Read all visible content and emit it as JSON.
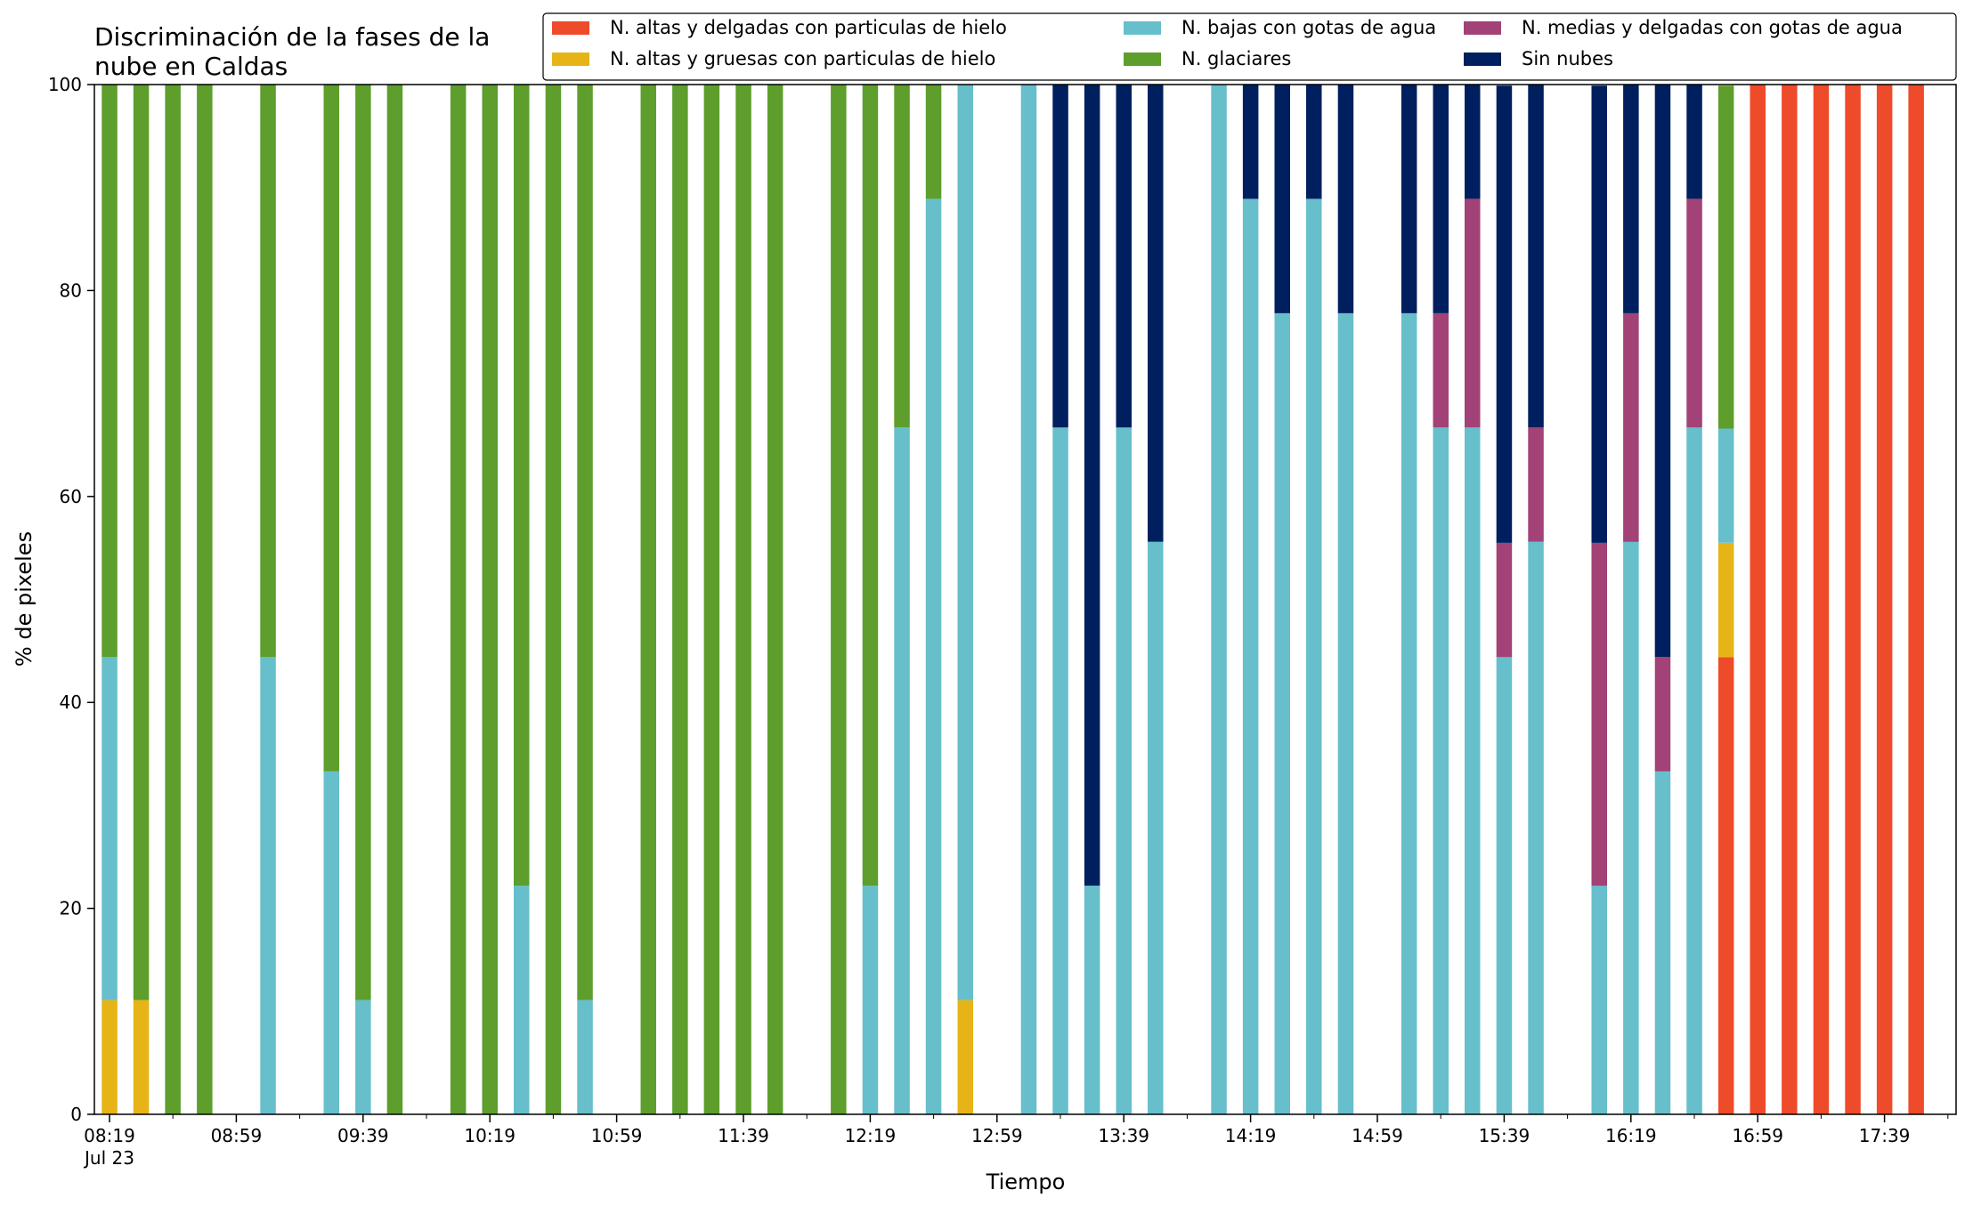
{
  "chart_data": {
    "type": "bar",
    "stacked": true,
    "title_lines": [
      "Discriminación de la fases de la",
      "nube en Caldas"
    ],
    "xlabel": "Tiempo",
    "ylabel": "% de pixeles",
    "ylim": [
      0,
      100
    ],
    "yticks": [
      0,
      20,
      40,
      60,
      80,
      100
    ],
    "xaxis_start": "08:19",
    "xaxis_end": "17:59",
    "slot_minutes": 10,
    "xticks": [
      {
        "time": "08:19",
        "label": "08:19",
        "sublabel": "Jul 23"
      },
      {
        "time": "08:59",
        "label": "08:59"
      },
      {
        "time": "09:39",
        "label": "09:39"
      },
      {
        "time": "10:19",
        "label": "10:19"
      },
      {
        "time": "10:59",
        "label": "10:59"
      },
      {
        "time": "11:39",
        "label": "11:39"
      },
      {
        "time": "12:19",
        "label": "12:19"
      },
      {
        "time": "12:59",
        "label": "12:59"
      },
      {
        "time": "13:39",
        "label": "13:39"
      },
      {
        "time": "14:19",
        "label": "14:19"
      },
      {
        "time": "14:59",
        "label": "14:59"
      },
      {
        "time": "15:39",
        "label": "15:39"
      },
      {
        "time": "16:19",
        "label": "16:19"
      },
      {
        "time": "16:59",
        "label": "16:59"
      },
      {
        "time": "17:39",
        "label": "17:39"
      }
    ],
    "legend_position": "top-right",
    "series": [
      {
        "name": "N. altas y delgadas con particulas de hielo",
        "color": "#ee4b2b"
      },
      {
        "name": "N. altas y gruesas con particulas de hielo",
        "color": "#e6b417"
      },
      {
        "name": "N. bajas con gotas de agua",
        "color": "#66bfcb"
      },
      {
        "name": "N. glaciares",
        "color": "#5d9e2c"
      },
      {
        "name": "N. medias y delgadas con gotas de agua",
        "color": "#a24276"
      },
      {
        "name": "Sin nubes",
        "color": "#001f5e"
      }
    ],
    "bars": [
      {
        "time": "08:19",
        "values": [
          0,
          11.1,
          33.3,
          55.6,
          0,
          0
        ]
      },
      {
        "time": "08:29",
        "values": [
          0,
          11.1,
          0,
          88.9,
          0,
          0
        ]
      },
      {
        "time": "08:39",
        "values": [
          0,
          0,
          0,
          100,
          0,
          0
        ]
      },
      {
        "time": "08:49",
        "values": [
          0,
          0,
          0,
          100,
          0,
          0
        ]
      },
      {
        "time": "09:09",
        "values": [
          0,
          0,
          44.4,
          55.6,
          0,
          0
        ]
      },
      {
        "time": "09:29",
        "values": [
          0,
          0,
          33.3,
          66.7,
          0,
          0
        ]
      },
      {
        "time": "09:39",
        "values": [
          0,
          0,
          11.1,
          88.9,
          0,
          0
        ]
      },
      {
        "time": "09:49",
        "values": [
          0,
          0,
          0,
          100,
          0,
          0
        ]
      },
      {
        "time": "10:09",
        "values": [
          0,
          0,
          0,
          100,
          0,
          0
        ]
      },
      {
        "time": "10:19",
        "values": [
          0,
          0,
          0,
          100,
          0,
          0
        ]
      },
      {
        "time": "10:29",
        "values": [
          0,
          0,
          22.2,
          77.8,
          0,
          0
        ]
      },
      {
        "time": "10:39",
        "values": [
          0,
          0,
          0,
          100,
          0,
          0
        ]
      },
      {
        "time": "10:49",
        "values": [
          0,
          0,
          11.1,
          88.9,
          0,
          0
        ]
      },
      {
        "time": "11:09",
        "values": [
          0,
          0,
          0,
          100,
          0,
          0
        ]
      },
      {
        "time": "11:19",
        "values": [
          0,
          0,
          0,
          100,
          0,
          0
        ]
      },
      {
        "time": "11:29",
        "values": [
          0,
          0,
          0,
          100,
          0,
          0
        ]
      },
      {
        "time": "11:39",
        "values": [
          0,
          0,
          0,
          100,
          0,
          0
        ]
      },
      {
        "time": "11:49",
        "values": [
          0,
          0,
          0,
          100,
          0,
          0
        ]
      },
      {
        "time": "12:09",
        "values": [
          0,
          0,
          0,
          100,
          0,
          0
        ]
      },
      {
        "time": "12:19",
        "values": [
          0,
          0,
          22.2,
          77.8,
          0,
          0
        ]
      },
      {
        "time": "12:29",
        "values": [
          0,
          0,
          66.7,
          33.3,
          0,
          0
        ]
      },
      {
        "time": "12:39",
        "values": [
          0,
          0,
          88.9,
          11.1,
          0,
          0
        ]
      },
      {
        "time": "12:49",
        "values": [
          0,
          11.1,
          88.9,
          0,
          0,
          0
        ]
      },
      {
        "time": "13:09",
        "values": [
          0,
          0,
          100,
          0,
          0,
          0
        ]
      },
      {
        "time": "13:19",
        "values": [
          0,
          0,
          66.7,
          0,
          0,
          33.3
        ]
      },
      {
        "time": "13:29",
        "values": [
          0,
          0,
          22.2,
          0,
          0,
          77.8
        ]
      },
      {
        "time": "13:39",
        "values": [
          0,
          0,
          66.7,
          0,
          0,
          33.3
        ]
      },
      {
        "time": "13:49",
        "values": [
          0,
          0,
          55.6,
          0,
          0,
          44.4
        ]
      },
      {
        "time": "14:09",
        "values": [
          0,
          0,
          100,
          0,
          0,
          0
        ]
      },
      {
        "time": "14:19",
        "values": [
          0,
          0,
          88.9,
          0,
          0,
          11.1
        ]
      },
      {
        "time": "14:29",
        "values": [
          0,
          0,
          77.8,
          0,
          0,
          22.2
        ]
      },
      {
        "time": "14:39",
        "values": [
          0,
          0,
          88.9,
          0,
          0,
          11.1
        ]
      },
      {
        "time": "14:49",
        "values": [
          0,
          0,
          77.8,
          0,
          0,
          22.2
        ]
      },
      {
        "time": "15:09",
        "values": [
          0,
          0,
          77.8,
          0,
          0,
          22.2
        ]
      },
      {
        "time": "15:19",
        "values": [
          0,
          0,
          66.7,
          0,
          11.1,
          22.2
        ]
      },
      {
        "time": "15:29",
        "values": [
          0,
          0,
          66.7,
          0,
          22.2,
          11.1
        ]
      },
      {
        "time": "15:39",
        "values": [
          0,
          0,
          44.4,
          0,
          11.1,
          44.4
        ]
      },
      {
        "time": "15:49",
        "values": [
          0,
          0,
          55.6,
          0,
          11.1,
          33.3
        ]
      },
      {
        "time": "16:09",
        "values": [
          0,
          0,
          22.2,
          0,
          33.3,
          44.4
        ]
      },
      {
        "time": "16:19",
        "values": [
          0,
          0,
          55.6,
          0,
          22.2,
          22.2
        ]
      },
      {
        "time": "16:29",
        "values": [
          0,
          0,
          33.3,
          0,
          11.1,
          55.6
        ]
      },
      {
        "time": "16:39",
        "values": [
          0,
          0,
          66.7,
          0,
          22.2,
          11.1
        ]
      },
      {
        "time": "16:49",
        "values": [
          44.4,
          11.1,
          11.1,
          33.3,
          0,
          0
        ]
      },
      {
        "time": "16:59",
        "values": [
          100,
          0,
          0,
          0,
          0,
          0
        ]
      },
      {
        "time": "17:09",
        "values": [
          100,
          0,
          0,
          0,
          0,
          0
        ]
      },
      {
        "time": "17:19",
        "values": [
          100,
          0,
          0,
          0,
          0,
          0
        ]
      },
      {
        "time": "17:29",
        "values": [
          100,
          0,
          0,
          0,
          0,
          0
        ]
      },
      {
        "time": "17:39",
        "values": [
          100,
          0,
          0,
          0,
          0,
          0
        ]
      },
      {
        "time": "17:49",
        "values": [
          100,
          0,
          0,
          0,
          0,
          0
        ]
      }
    ]
  }
}
